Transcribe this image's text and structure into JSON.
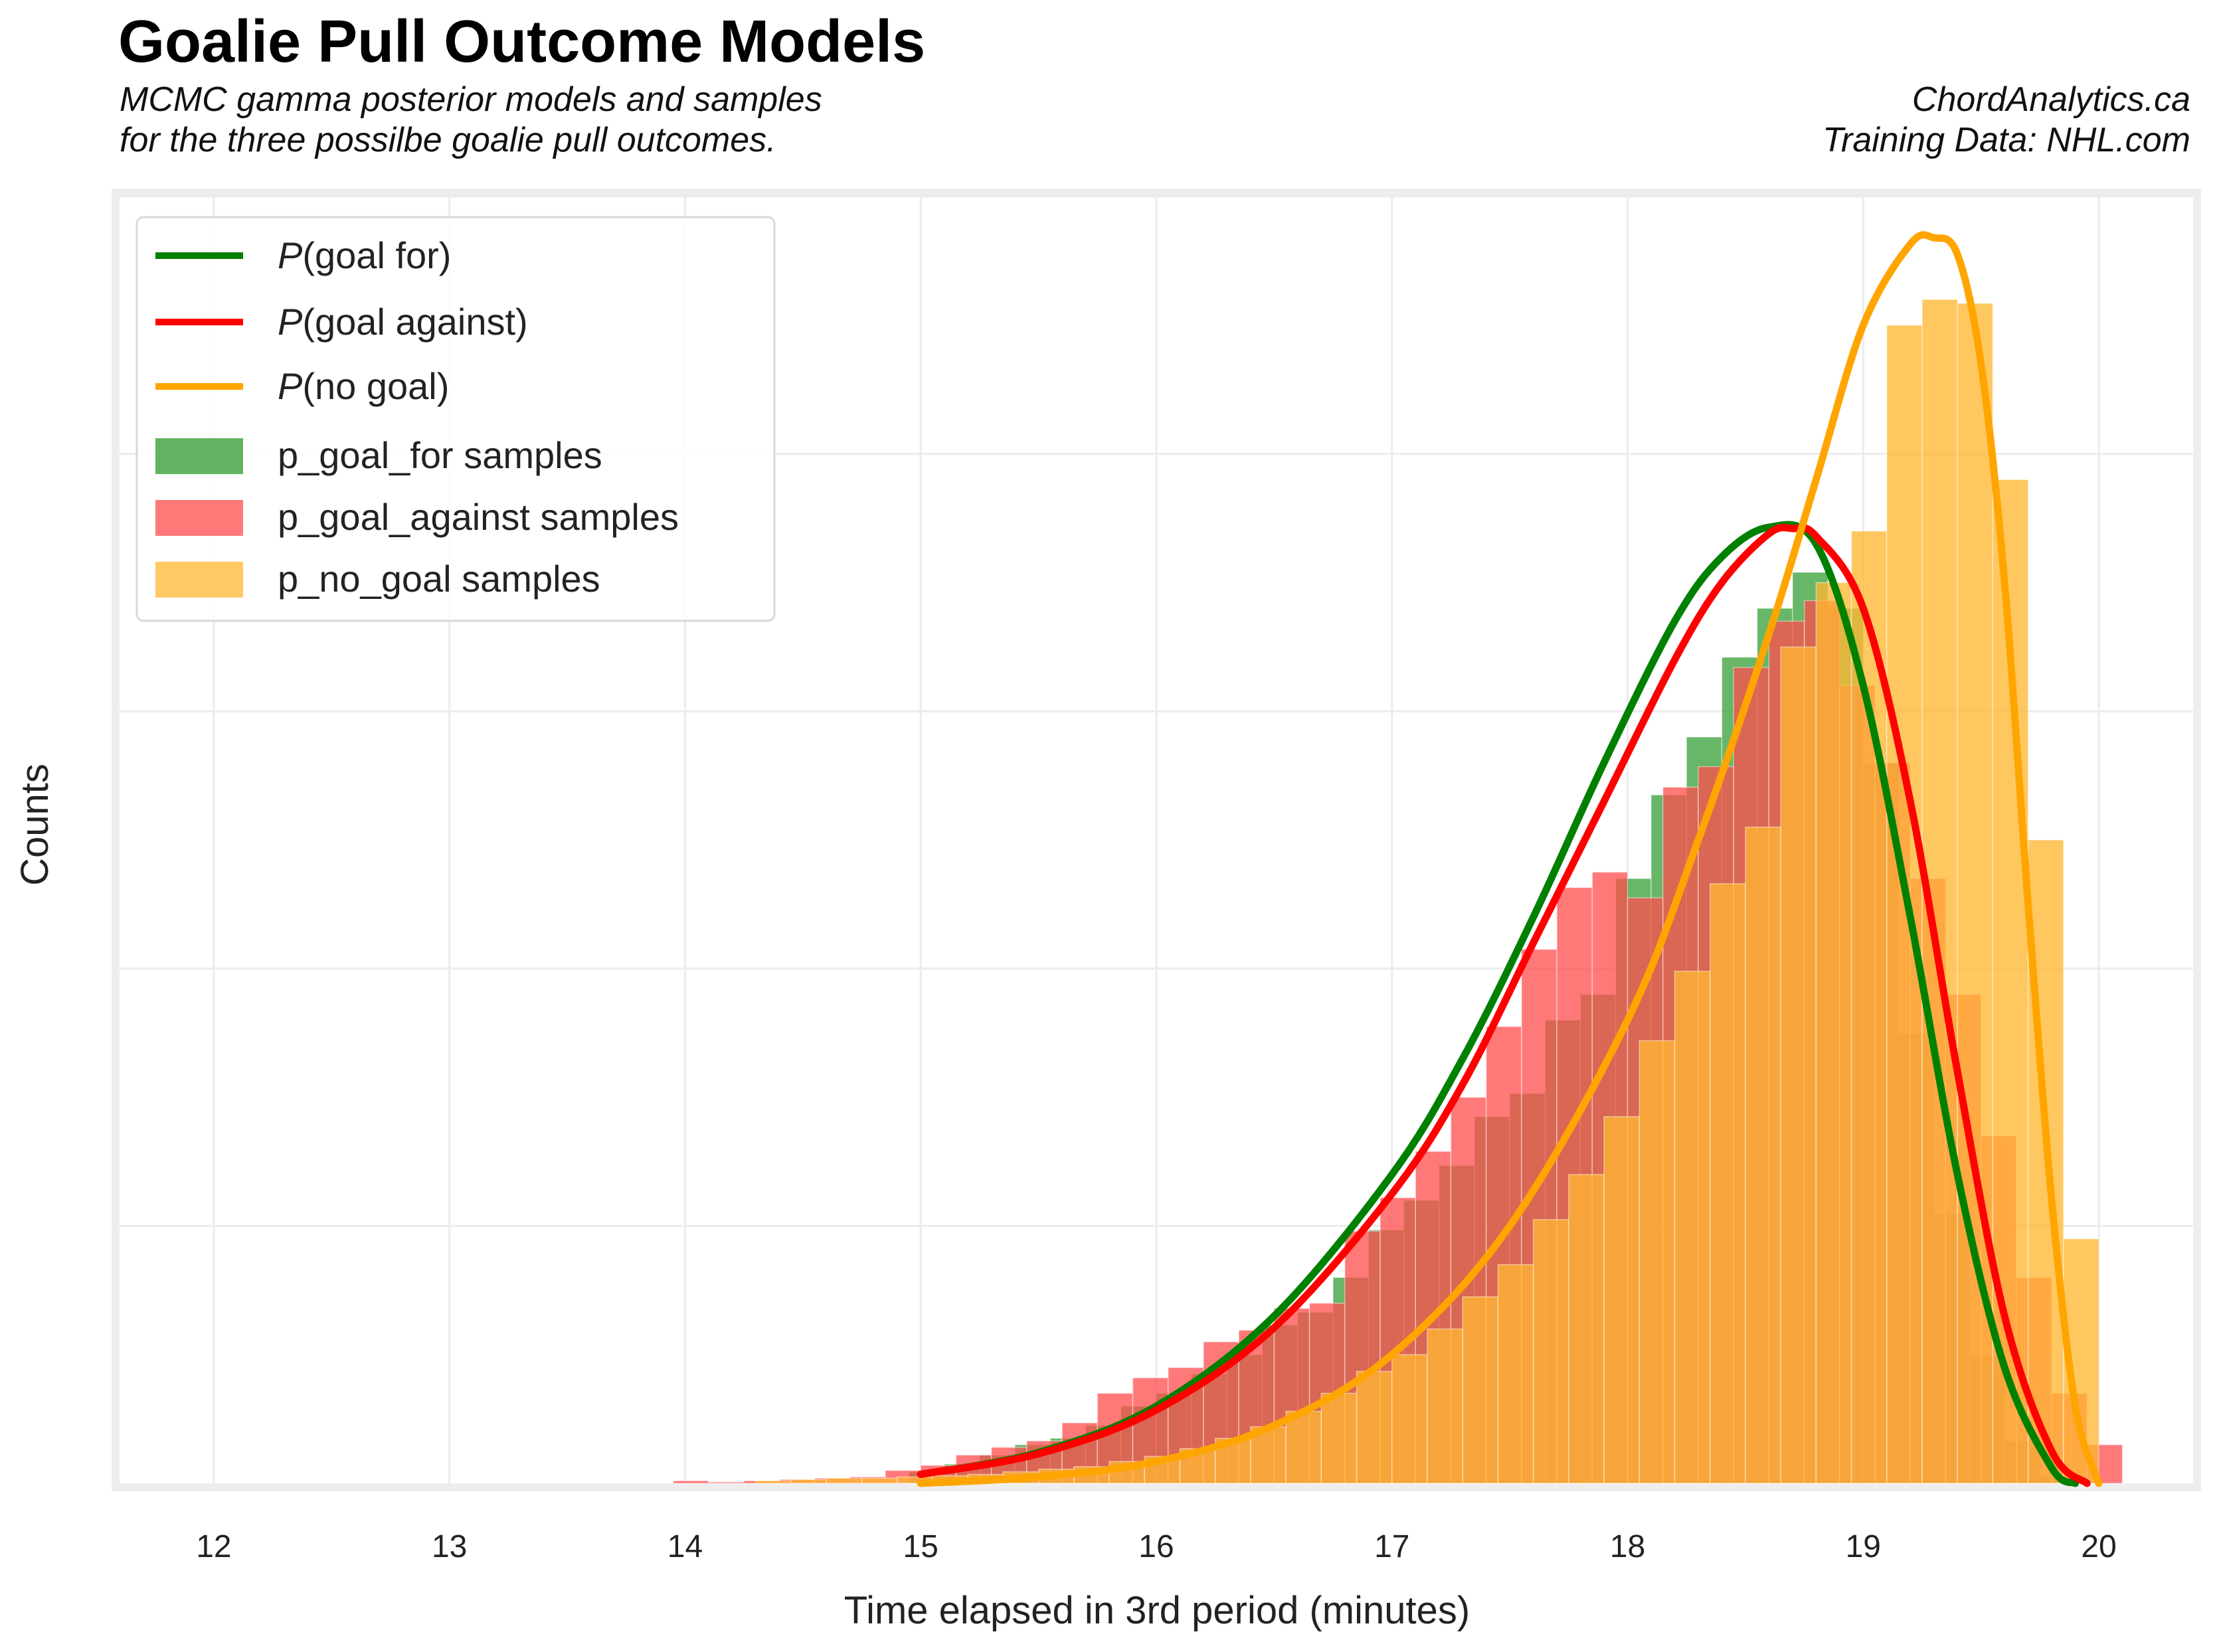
{
  "header": {
    "title": "Goalie Pull Outcome Models",
    "subtitle_line1": "MCMC gamma posterior models and samples",
    "subtitle_line2": "for the three possilbe goalie pull outcomes.",
    "credit_line1": "ChordAnalytics.ca",
    "credit_line2": "Training Data: NHL.com"
  },
  "chart_data": {
    "type": "bar",
    "title": "Goalie Pull Outcome Models",
    "xlabel": "Time elapsed in 3rd period (minutes)",
    "ylabel": "Counts",
    "xlim": [
      11.6,
      20.4
    ],
    "ylim": [
      0,
      1.0
    ],
    "xticks": [
      12,
      13,
      14,
      15,
      16,
      17,
      18,
      19,
      20
    ],
    "y_tick_labels_shown": false,
    "grid": true,
    "legend_position": "top-left",
    "bin_width": 0.15,
    "colors": {
      "goal_for": "#008000",
      "goal_against": "#ff0000",
      "no_goal": "#ffa500",
      "hist_goal_for": "#2e9a2e",
      "hist_goal_against": "#ff4c4c",
      "hist_no_goal": "#ffb733"
    },
    "curves": [
      {
        "name": "P(goal for)",
        "label_italic": "P",
        "label_rest": "(goal for)",
        "color": "#008000",
        "x": [
          15.0,
          15.5,
          16.0,
          16.5,
          17.0,
          17.3,
          17.6,
          17.9,
          18.2,
          18.4,
          18.6,
          18.8,
          19.0,
          19.2,
          19.4,
          19.6,
          19.8,
          19.9
        ],
        "y": [
          0.007,
          0.024,
          0.06,
          0.13,
          0.24,
          0.33,
          0.44,
          0.56,
          0.67,
          0.72,
          0.743,
          0.73,
          0.62,
          0.44,
          0.24,
          0.09,
          0.012,
          0.0
        ]
      },
      {
        "name": "P(goal against)",
        "label_italic": "P",
        "label_rest": "(goal against)",
        "color": "#ff0000",
        "x": [
          15.0,
          15.5,
          16.0,
          16.5,
          17.0,
          17.3,
          17.6,
          17.9,
          18.2,
          18.4,
          18.6,
          18.7,
          18.8,
          19.0,
          19.2,
          19.4,
          19.6,
          19.8,
          19.95
        ],
        "y": [
          0.007,
          0.023,
          0.057,
          0.121,
          0.225,
          0.31,
          0.42,
          0.53,
          0.64,
          0.7,
          0.738,
          0.742,
          0.736,
          0.68,
          0.53,
          0.32,
          0.13,
          0.025,
          0.0
        ]
      },
      {
        "name": "P(no goal)",
        "label_italic": "P",
        "label_rest": "(no goal)",
        "color": "#ffa500",
        "x": [
          15.0,
          15.5,
          16.0,
          16.5,
          17.0,
          17.5,
          18.0,
          18.3,
          18.6,
          18.8,
          19.0,
          19.2,
          19.3,
          19.4,
          19.5,
          19.6,
          19.7,
          19.8,
          19.9,
          20.0
        ],
        "y": [
          0.0,
          0.005,
          0.017,
          0.045,
          0.1,
          0.2,
          0.36,
          0.5,
          0.66,
          0.78,
          0.9,
          0.963,
          0.968,
          0.955,
          0.87,
          0.7,
          0.45,
          0.22,
          0.06,
          0.0
        ]
      }
    ],
    "series": [
      {
        "name": "p_goal_for samples",
        "bins_start": [
          14.95,
          15.1,
          15.25,
          15.4,
          15.55,
          15.7,
          15.85,
          16.0,
          16.15,
          16.3,
          16.45,
          16.6,
          16.75,
          16.9,
          17.05,
          17.2,
          17.35,
          17.5,
          17.65,
          17.8,
          17.95,
          18.1,
          18.25,
          18.4,
          18.55,
          18.7,
          18.85,
          19.0,
          19.15,
          19.3,
          19.45,
          19.6,
          19.75
        ],
        "values": [
          0.009,
          0.015,
          0.022,
          0.03,
          0.035,
          0.045,
          0.06,
          0.07,
          0.085,
          0.1,
          0.123,
          0.133,
          0.16,
          0.197,
          0.22,
          0.247,
          0.285,
          0.303,
          0.36,
          0.38,
          0.47,
          0.535,
          0.58,
          0.642,
          0.68,
          0.708,
          0.68,
          0.56,
          0.35,
          0.21,
          0.1,
          0.033,
          0.006
        ]
      },
      {
        "name": "p_goal_against samples",
        "bins_start": [
          13.95,
          14.1,
          14.25,
          14.4,
          14.55,
          14.7,
          14.85,
          15.0,
          15.15,
          15.3,
          15.45,
          15.6,
          15.75,
          15.9,
          16.05,
          16.2,
          16.35,
          16.5,
          16.65,
          16.8,
          16.95,
          17.1,
          17.25,
          17.4,
          17.55,
          17.7,
          17.85,
          18.0,
          18.15,
          18.3,
          18.45,
          18.6,
          18.75,
          18.9,
          19.05,
          19.2,
          19.35,
          19.5,
          19.65,
          19.8,
          19.95
        ],
        "values": [
          0.002,
          0.001,
          0.002,
          0.003,
          0.004,
          0.005,
          0.01,
          0.014,
          0.022,
          0.028,
          0.033,
          0.047,
          0.07,
          0.082,
          0.09,
          0.11,
          0.119,
          0.136,
          0.14,
          0.196,
          0.222,
          0.258,
          0.3,
          0.355,
          0.415,
          0.463,
          0.475,
          0.455,
          0.541,
          0.557,
          0.634,
          0.67,
          0.686,
          0.62,
          0.56,
          0.47,
          0.38,
          0.27,
          0.16,
          0.07,
          0.03
        ]
      },
      {
        "name": "p_no_goal samples",
        "bins_start": [
          14.3,
          14.45,
          14.6,
          14.75,
          14.9,
          15.05,
          15.2,
          15.35,
          15.5,
          15.65,
          15.8,
          15.95,
          16.1,
          16.25,
          16.4,
          16.55,
          16.7,
          16.85,
          17.0,
          17.15,
          17.3,
          17.45,
          17.6,
          17.75,
          17.9,
          18.05,
          18.2,
          18.35,
          18.5,
          18.65,
          18.8,
          18.95,
          19.1,
          19.25,
          19.4,
          19.55,
          19.7,
          19.85
        ],
        "values": [
          0.002,
          0.003,
          0.004,
          0.004,
          0.005,
          0.006,
          0.007,
          0.009,
          0.011,
          0.013,
          0.017,
          0.021,
          0.027,
          0.035,
          0.044,
          0.056,
          0.07,
          0.087,
          0.1,
          0.12,
          0.145,
          0.17,
          0.205,
          0.24,
          0.285,
          0.344,
          0.398,
          0.466,
          0.51,
          0.65,
          0.7,
          0.74,
          0.9,
          0.92,
          0.917,
          0.78,
          0.5,
          0.19
        ]
      }
    ]
  }
}
